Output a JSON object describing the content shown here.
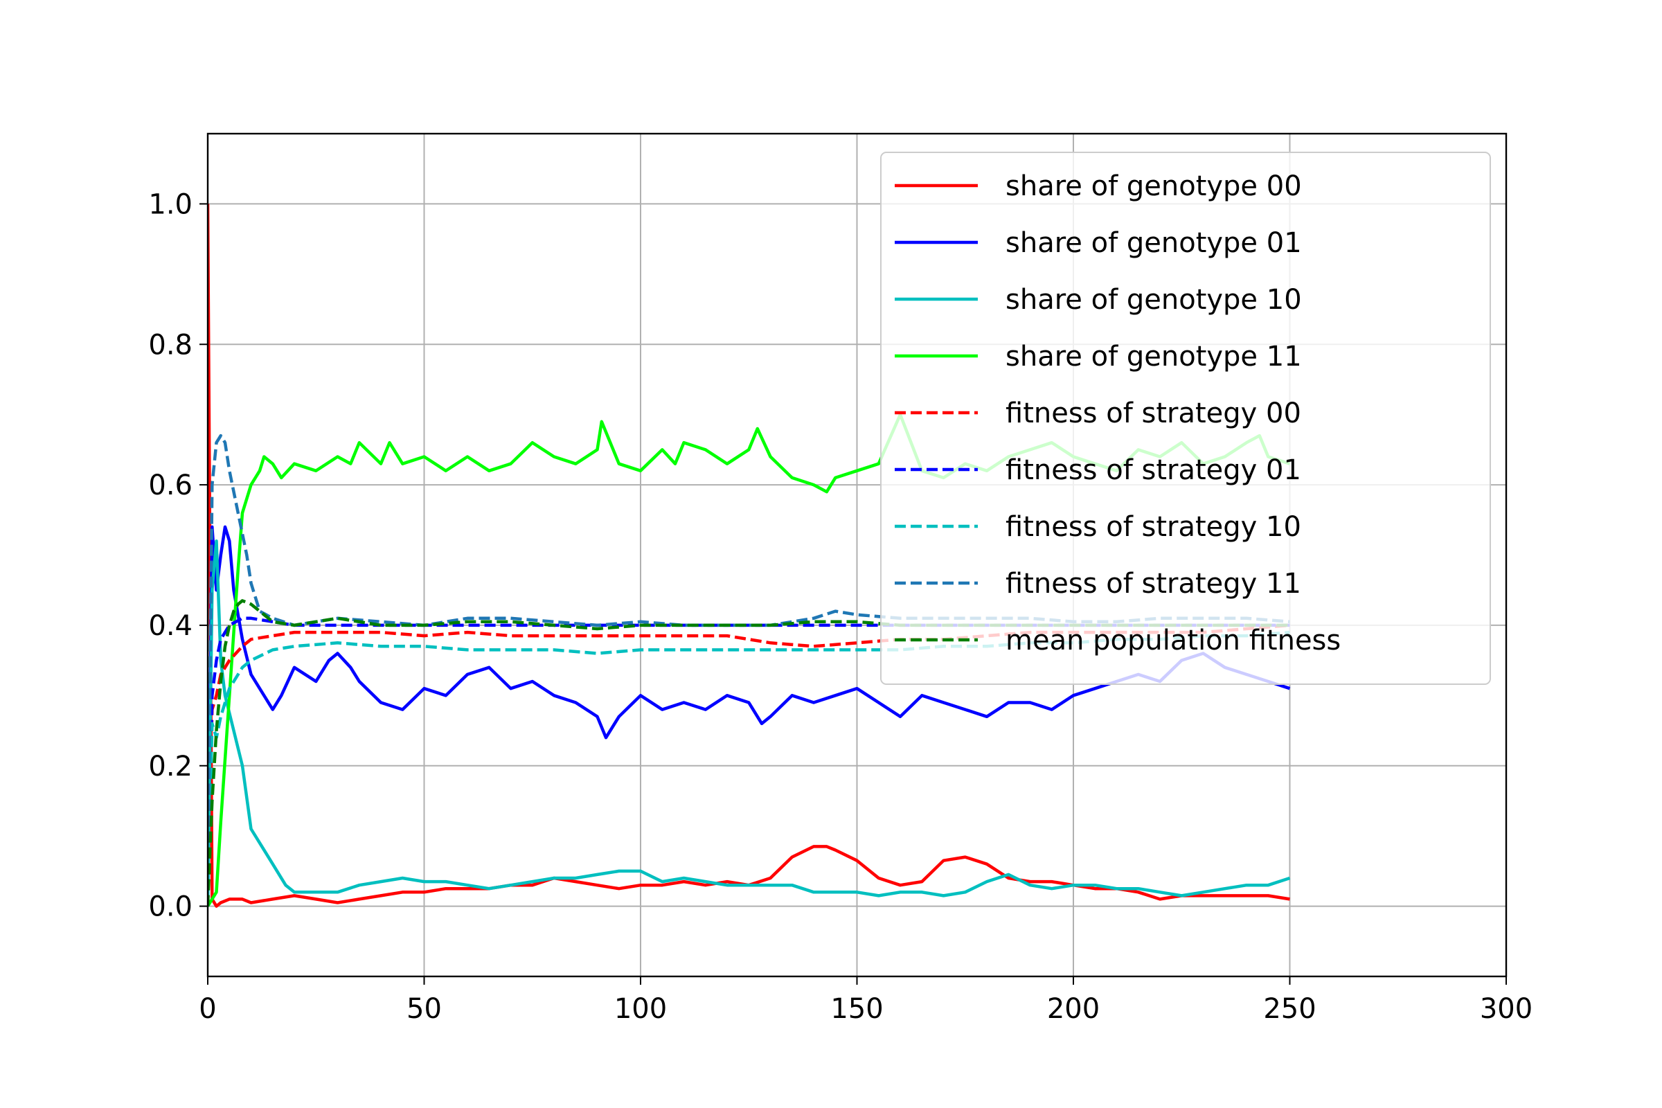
{
  "chart_data": {
    "type": "line",
    "title": "",
    "xlabel": "",
    "ylabel": "",
    "xlim": [
      0,
      300
    ],
    "ylim": [
      -0.1,
      1.1
    ],
    "xticks": [
      0,
      50,
      100,
      150,
      200,
      250,
      300
    ],
    "yticks": [
      0.0,
      0.2,
      0.4,
      0.6,
      0.8,
      1.0
    ],
    "xtick_labels": [
      "0",
      "50",
      "100",
      "150",
      "200",
      "250",
      "300"
    ],
    "ytick_labels": [
      "0.0",
      "0.2",
      "0.4",
      "0.6",
      "0.8",
      "1.0"
    ],
    "grid": true,
    "legend_position": "top-right",
    "series": [
      {
        "name": "share of genotype 00",
        "color": "#ff0000",
        "dash": "solid",
        "x": [
          0,
          1,
          2,
          3,
          5,
          8,
          10,
          15,
          20,
          25,
          30,
          35,
          40,
          45,
          50,
          55,
          60,
          65,
          70,
          75,
          80,
          85,
          90,
          95,
          100,
          105,
          110,
          115,
          120,
          125,
          130,
          135,
          140,
          143,
          145,
          150,
          155,
          160,
          165,
          170,
          175,
          180,
          185,
          190,
          195,
          200,
          205,
          210,
          215,
          220,
          225,
          230,
          235,
          240,
          245,
          250
        ],
        "y": [
          1.0,
          0.01,
          0.0,
          0.005,
          0.01,
          0.01,
          0.005,
          0.01,
          0.015,
          0.01,
          0.005,
          0.01,
          0.015,
          0.02,
          0.02,
          0.025,
          0.025,
          0.025,
          0.03,
          0.03,
          0.04,
          0.035,
          0.03,
          0.025,
          0.03,
          0.03,
          0.035,
          0.03,
          0.035,
          0.03,
          0.04,
          0.07,
          0.085,
          0.085,
          0.08,
          0.065,
          0.04,
          0.03,
          0.035,
          0.065,
          0.07,
          0.06,
          0.04,
          0.035,
          0.035,
          0.03,
          0.025,
          0.025,
          0.02,
          0.01,
          0.015,
          0.015,
          0.015,
          0.015,
          0.015,
          0.01
        ]
      },
      {
        "name": "share of genotype 01",
        "color": "#0000ff",
        "dash": "solid",
        "x": [
          0,
          1,
          2,
          3,
          4,
          5,
          6,
          8,
          10,
          12,
          15,
          17,
          20,
          25,
          28,
          30,
          33,
          35,
          40,
          45,
          50,
          55,
          60,
          65,
          70,
          75,
          80,
          85,
          90,
          92,
          95,
          100,
          105,
          110,
          115,
          120,
          125,
          128,
          130,
          135,
          140,
          145,
          150,
          155,
          160,
          165,
          170,
          175,
          180,
          185,
          190,
          195,
          200,
          205,
          210,
          215,
          220,
          225,
          230,
          235,
          240,
          245,
          250
        ],
        "y": [
          0.0,
          0.54,
          0.45,
          0.5,
          0.54,
          0.52,
          0.45,
          0.38,
          0.33,
          0.31,
          0.28,
          0.3,
          0.34,
          0.32,
          0.35,
          0.36,
          0.34,
          0.32,
          0.29,
          0.28,
          0.31,
          0.3,
          0.33,
          0.34,
          0.31,
          0.32,
          0.3,
          0.29,
          0.27,
          0.24,
          0.27,
          0.3,
          0.28,
          0.29,
          0.28,
          0.3,
          0.29,
          0.26,
          0.27,
          0.3,
          0.29,
          0.3,
          0.31,
          0.29,
          0.27,
          0.3,
          0.29,
          0.28,
          0.27,
          0.29,
          0.29,
          0.28,
          0.3,
          0.31,
          0.32,
          0.33,
          0.32,
          0.35,
          0.36,
          0.34,
          0.33,
          0.32,
          0.31
        ]
      },
      {
        "name": "share of genotype 10",
        "color": "#00bfbf",
        "dash": "solid",
        "x": [
          0,
          1,
          2,
          3,
          4,
          6,
          8,
          10,
          15,
          18,
          20,
          25,
          30,
          35,
          40,
          45,
          50,
          55,
          60,
          65,
          70,
          75,
          80,
          85,
          90,
          95,
          100,
          105,
          110,
          115,
          120,
          125,
          130,
          135,
          140,
          145,
          150,
          155,
          160,
          165,
          170,
          175,
          180,
          185,
          190,
          195,
          200,
          205,
          210,
          215,
          220,
          225,
          230,
          235,
          240,
          245,
          250
        ],
        "y": [
          0.0,
          0.45,
          0.52,
          0.35,
          0.3,
          0.25,
          0.2,
          0.11,
          0.06,
          0.03,
          0.02,
          0.02,
          0.02,
          0.03,
          0.035,
          0.04,
          0.035,
          0.035,
          0.03,
          0.025,
          0.03,
          0.035,
          0.04,
          0.04,
          0.045,
          0.05,
          0.05,
          0.035,
          0.04,
          0.035,
          0.03,
          0.03,
          0.03,
          0.03,
          0.02,
          0.02,
          0.02,
          0.015,
          0.02,
          0.02,
          0.015,
          0.02,
          0.035,
          0.045,
          0.03,
          0.025,
          0.03,
          0.03,
          0.025,
          0.025,
          0.02,
          0.015,
          0.02,
          0.025,
          0.03,
          0.03,
          0.04
        ]
      },
      {
        "name": "share of genotype 11",
        "color": "#00ff00",
        "dash": "solid",
        "x": [
          0,
          2,
          3,
          5,
          7,
          8,
          10,
          12,
          13,
          15,
          17,
          20,
          25,
          30,
          33,
          35,
          40,
          42,
          45,
          50,
          55,
          60,
          65,
          70,
          75,
          80,
          85,
          90,
          91,
          93,
          95,
          100,
          105,
          108,
          110,
          115,
          120,
          125,
          127,
          130,
          135,
          140,
          143,
          145,
          150,
          155,
          160,
          165,
          170,
          175,
          180,
          185,
          190,
          195,
          200,
          205,
          210,
          215,
          220,
          225,
          230,
          235,
          240,
          243,
          245,
          250
        ],
        "y": [
          0.0,
          0.02,
          0.12,
          0.3,
          0.48,
          0.56,
          0.6,
          0.62,
          0.64,
          0.63,
          0.61,
          0.63,
          0.62,
          0.64,
          0.63,
          0.66,
          0.63,
          0.66,
          0.63,
          0.64,
          0.62,
          0.64,
          0.62,
          0.63,
          0.66,
          0.64,
          0.63,
          0.65,
          0.69,
          0.66,
          0.63,
          0.62,
          0.65,
          0.63,
          0.66,
          0.65,
          0.63,
          0.65,
          0.68,
          0.64,
          0.61,
          0.6,
          0.59,
          0.61,
          0.62,
          0.63,
          0.7,
          0.62,
          0.61,
          0.63,
          0.62,
          0.64,
          0.65,
          0.66,
          0.64,
          0.63,
          0.62,
          0.65,
          0.64,
          0.66,
          0.63,
          0.64,
          0.66,
          0.67,
          0.64,
          0.63
        ]
      },
      {
        "name": "fitness of strategy 00",
        "color": "#ff0000",
        "dash": "dashed",
        "x": [
          0,
          1,
          2,
          3,
          5,
          8,
          10,
          15,
          20,
          30,
          40,
          50,
          60,
          70,
          80,
          90,
          100,
          110,
          120,
          130,
          140,
          150,
          160,
          170,
          180,
          190,
          200,
          210,
          220,
          230,
          240,
          250
        ],
        "y": [
          0.0,
          0.28,
          0.3,
          0.33,
          0.35,
          0.37,
          0.38,
          0.385,
          0.39,
          0.39,
          0.39,
          0.385,
          0.39,
          0.385,
          0.385,
          0.385,
          0.385,
          0.385,
          0.385,
          0.375,
          0.37,
          0.375,
          0.38,
          0.38,
          0.385,
          0.39,
          0.39,
          0.39,
          0.39,
          0.39,
          0.395,
          0.4
        ]
      },
      {
        "name": "fitness of strategy 01",
        "color": "#0000ff",
        "dash": "dashed",
        "x": [
          0,
          1,
          2,
          3,
          5,
          8,
          10,
          15,
          20,
          30,
          40,
          50,
          60,
          70,
          80,
          90,
          100,
          110,
          120,
          130,
          140,
          150,
          160,
          170,
          180,
          190,
          200,
          210,
          220,
          230,
          240,
          250
        ],
        "y": [
          0.0,
          0.3,
          0.35,
          0.38,
          0.4,
          0.41,
          0.41,
          0.405,
          0.4,
          0.4,
          0.4,
          0.4,
          0.4,
          0.4,
          0.4,
          0.4,
          0.4,
          0.4,
          0.4,
          0.4,
          0.4,
          0.4,
          0.4,
          0.4,
          0.4,
          0.4,
          0.4,
          0.4,
          0.4,
          0.4,
          0.4,
          0.4
        ]
      },
      {
        "name": "fitness of strategy 10",
        "color": "#00bfbf",
        "dash": "dashed",
        "x": [
          0,
          1,
          2,
          3,
          5,
          8,
          10,
          15,
          20,
          30,
          40,
          50,
          60,
          70,
          80,
          90,
          100,
          110,
          120,
          130,
          140,
          150,
          160,
          170,
          180,
          190,
          200,
          210,
          220,
          230,
          240,
          250
        ],
        "y": [
          0.0,
          0.26,
          0.24,
          0.27,
          0.31,
          0.34,
          0.35,
          0.365,
          0.37,
          0.375,
          0.37,
          0.37,
          0.365,
          0.365,
          0.365,
          0.36,
          0.365,
          0.365,
          0.365,
          0.365,
          0.365,
          0.365,
          0.365,
          0.37,
          0.37,
          0.375,
          0.375,
          0.38,
          0.38,
          0.385,
          0.385,
          0.39
        ]
      },
      {
        "name": "fitness of strategy 11",
        "color": "#1f77b4",
        "dash": "dashed",
        "x": [
          0,
          1,
          2,
          3,
          4,
          5,
          7,
          9,
          10,
          12,
          15,
          20,
          25,
          30,
          40,
          50,
          60,
          70,
          80,
          90,
          100,
          110,
          120,
          130,
          140,
          145,
          150,
          160,
          170,
          180,
          190,
          200,
          210,
          220,
          230,
          240,
          250
        ],
        "y": [
          0.0,
          0.6,
          0.66,
          0.67,
          0.66,
          0.62,
          0.56,
          0.5,
          0.46,
          0.42,
          0.41,
          0.4,
          0.405,
          0.41,
          0.405,
          0.4,
          0.41,
          0.41,
          0.405,
          0.4,
          0.405,
          0.4,
          0.4,
          0.4,
          0.41,
          0.42,
          0.415,
          0.41,
          0.41,
          0.41,
          0.41,
          0.405,
          0.405,
          0.41,
          0.41,
          0.41,
          0.405
        ]
      },
      {
        "name": "mean population fitness",
        "color": "#007f00",
        "dash": "dashed",
        "x": [
          0,
          1,
          2,
          3,
          4,
          5,
          6,
          7,
          8,
          10,
          12,
          15,
          20,
          25,
          30,
          40,
          50,
          60,
          70,
          80,
          90,
          100,
          110,
          120,
          130,
          140,
          150,
          160,
          170,
          180,
          190,
          200,
          210,
          220,
          230,
          240,
          250
        ],
        "y": [
          0.0,
          0.15,
          0.25,
          0.32,
          0.37,
          0.4,
          0.42,
          0.43,
          0.435,
          0.43,
          0.42,
          0.405,
          0.4,
          0.405,
          0.41,
          0.4,
          0.4,
          0.405,
          0.405,
          0.4,
          0.395,
          0.4,
          0.4,
          0.4,
          0.4,
          0.405,
          0.405,
          0.4,
          0.4,
          0.4,
          0.4,
          0.4,
          0.4,
          0.4,
          0.4,
          0.4,
          0.4
        ]
      }
    ]
  }
}
